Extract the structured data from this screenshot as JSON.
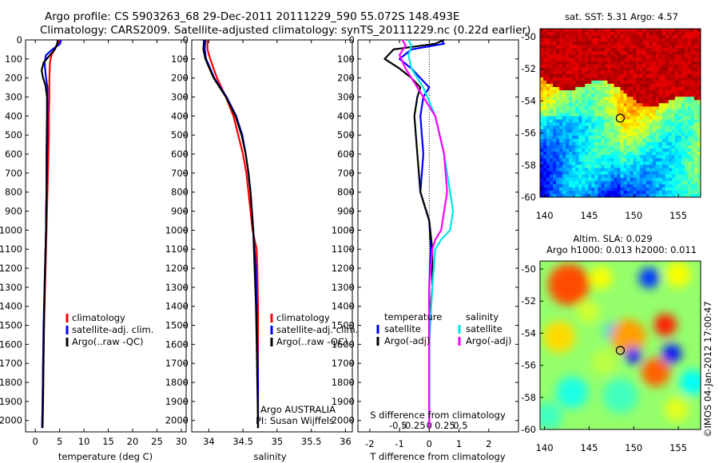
{
  "header": {
    "line1": "Argo profile: CS 5903263_68 29-Dec-2011 20111229_590 55.072S 148.493E",
    "line2": "Climatology: CARS2009. Satellite-adjusted climatology: synTS_20111229.nc (0.22d earlier)"
  },
  "colors": {
    "climatology": "#ff0000",
    "satellite": "#0000ff",
    "argo": "#000000",
    "sal_sat": "#00e5e5",
    "sal_argo": "#ff00ff"
  },
  "chart_data": [
    {
      "type": "line",
      "panel": "temperature",
      "xlabel": "temperature (deg C)",
      "ylabel": "",
      "xlim": [
        -2,
        31
      ],
      "ylim": [
        2060,
        0
      ],
      "xticks": [
        0,
        5,
        10,
        15,
        20,
        25,
        30
      ],
      "yticks": [
        0,
        100,
        200,
        300,
        400,
        500,
        600,
        700,
        800,
        900,
        1000,
        1100,
        1200,
        1300,
        1400,
        1500,
        1600,
        1700,
        1800,
        1900,
        2000
      ],
      "legend": [
        "climatology",
        "satellite-adj. clim.",
        "Argo(..raw -QC)"
      ],
      "series": [
        {
          "name": "climatology",
          "color": "#ff0000",
          "x": [
            4.9,
            4.7,
            4.0,
            3.3,
            3.0,
            2.9,
            2.9,
            2.8,
            2.8,
            2.7,
            2.6,
            2.5,
            2.4,
            2.3,
            2.2,
            2.1,
            2.0,
            1.9,
            1.8,
            1.7,
            1.6,
            1.5,
            1.4
          ],
          "y": [
            0,
            20,
            50,
            80,
            120,
            200,
            300,
            400,
            500,
            600,
            700,
            800,
            900,
            1000,
            1100,
            1200,
            1300,
            1400,
            1500,
            1600,
            1700,
            1900,
            2040
          ]
        },
        {
          "name": "satellite-adj. clim.",
          "color": "#0000ff",
          "x": [
            5.3,
            5.1,
            3.5,
            2.2,
            1.9,
            2.2,
            2.5,
            2.5,
            2.5,
            2.5,
            2.4,
            2.4,
            2.3,
            2.2,
            2.2,
            2.1,
            2.0,
            1.9,
            1.8,
            1.7,
            1.6,
            1.5,
            1.4
          ],
          "y": [
            0,
            20,
            50,
            80,
            120,
            200,
            250,
            300,
            400,
            500,
            600,
            700,
            800,
            900,
            1000,
            1100,
            1200,
            1300,
            1400,
            1500,
            1700,
            1900,
            2040
          ]
        },
        {
          "name": "Argo(..raw -QC)",
          "color": "#000000",
          "x": [
            4.6,
            4.5,
            4.0,
            3.0,
            1.7,
            1.3,
            1.6,
            2.1,
            2.4,
            2.4,
            2.3,
            2.3,
            2.2,
            2.1,
            2.0,
            1.9,
            1.8,
            1.7,
            1.6,
            1.5
          ],
          "y": [
            0,
            20,
            50,
            80,
            120,
            160,
            200,
            240,
            300,
            400,
            600,
            800,
            1000,
            1100,
            1200,
            1300,
            1500,
            1700,
            1900,
            2040
          ]
        }
      ]
    },
    {
      "type": "line",
      "panel": "salinity",
      "xlabel": "salinity",
      "ylabel": "",
      "xlim": [
        33.75,
        36.1
      ],
      "ylim": [
        2060,
        0
      ],
      "xticks": [
        34,
        34.5,
        35,
        35.5,
        36
      ],
      "xtick_labels": [
        "34",
        "34.5",
        "35",
        "35.5",
        "36"
      ],
      "legend": [
        "climatology",
        "satellite-adj. clim.",
        "Argo(..raw -QC)"
      ],
      "series": [
        {
          "name": "climatology",
          "color": "#ff0000",
          "x": [
            33.98,
            33.98,
            34.02,
            34.12,
            34.25,
            34.36,
            34.43,
            34.5,
            34.55,
            34.58,
            34.61,
            34.64,
            34.67,
            34.7,
            34.71,
            34.72,
            34.72,
            34.72,
            34.72
          ],
          "y": [
            0,
            50,
            100,
            200,
            300,
            400,
            500,
            600,
            700,
            800,
            900,
            1000,
            1050,
            1100,
            1200,
            1400,
            1600,
            1800,
            2040
          ]
        },
        {
          "name": "satellite-adj. clim.",
          "color": "#0000ff",
          "x": [
            33.95,
            33.94,
            33.96,
            34.08,
            34.26,
            34.4,
            34.49,
            34.54,
            34.58,
            34.61,
            34.63,
            34.65,
            34.67,
            34.69,
            34.7,
            34.71,
            34.72,
            34.72
          ],
          "y": [
            0,
            50,
            100,
            200,
            300,
            400,
            500,
            600,
            700,
            800,
            900,
            1000,
            1100,
            1200,
            1400,
            1600,
            1800,
            2040
          ]
        },
        {
          "name": "Argo(..raw -QC)",
          "color": "#000000",
          "x": [
            33.93,
            33.92,
            33.95,
            34.07,
            34.25,
            34.39,
            34.48,
            34.54,
            34.58,
            34.61,
            34.63,
            34.65,
            34.67,
            34.69,
            34.7,
            34.71,
            34.72
          ],
          "y": [
            0,
            50,
            100,
            200,
            300,
            400,
            500,
            600,
            700,
            800,
            900,
            1000,
            1200,
            1400,
            1600,
            1800,
            2040
          ]
        }
      ],
      "annotation_line1": "Argo AUSTRALIA",
      "annotation_line2": "PI: Susan Wijffels"
    },
    {
      "type": "line",
      "panel": "differences",
      "xlabel": "T difference from climatology",
      "xlabel_top": "S difference from climatology",
      "xlim": [
        -2.4,
        3
      ],
      "ylim": [
        2060,
        0
      ],
      "xticks_T": [
        -2,
        -1,
        0,
        1,
        2
      ],
      "xticks_S": [
        "-0.5",
        "-0.25",
        "0",
        "0.25",
        "0.5"
      ],
      "legend_title_T": "temperature",
      "legend_title_S": "salinity",
      "legend_T": [
        "satellite",
        "Argo(-adj)"
      ],
      "legend_S": [
        "satellite",
        "Argo(-adj)"
      ],
      "series": [
        {
          "name": "T satellite",
          "color": "#0000ff",
          "x": [
            0.4,
            0.5,
            -0.6,
            -1.0,
            -0.6,
            -0.3,
            0.0,
            -0.2,
            -0.3,
            -0.2,
            -0.3,
            0.0,
            0.05,
            0.0,
            0.0,
            0.0,
            0.0
          ],
          "y": [
            0,
            20,
            50,
            100,
            150,
            200,
            250,
            300,
            400,
            600,
            800,
            950,
            1100,
            1300,
            1500,
            1800,
            2040
          ]
        },
        {
          "name": "T Argo(-adj)",
          "color": "#000000",
          "x": [
            0.5,
            0.2,
            -1.2,
            -1.5,
            -1.0,
            -0.6,
            -0.3,
            -0.4,
            -0.5,
            -0.4,
            -0.3,
            0.0,
            0.1,
            0.1,
            0.0,
            0.0,
            0.0
          ],
          "y": [
            0,
            20,
            50,
            100,
            150,
            200,
            250,
            300,
            400,
            600,
            800,
            950,
            1100,
            1300,
            1500,
            1800,
            2040
          ]
        },
        {
          "name": "S satellite",
          "color": "#00e5e5",
          "x": [
            -0.7,
            -0.6,
            -0.7,
            -0.6,
            -0.2,
            0.2,
            0.5,
            0.7,
            0.8,
            0.7,
            0.4,
            0.2,
            0.1,
            0.0,
            0.0
          ],
          "y": [
            0,
            30,
            80,
            150,
            250,
            400,
            600,
            800,
            900,
            1000,
            1050,
            1100,
            1300,
            1600,
            2040
          ]
        },
        {
          "name": "S Argo(-adj)",
          "color": "#ff00ff",
          "x": [
            -0.9,
            -0.8,
            -1.0,
            -0.8,
            -0.4,
            0.2,
            0.5,
            0.6,
            0.5,
            0.4,
            0.2,
            0.1,
            0.0,
            0.0
          ],
          "y": [
            0,
            30,
            80,
            150,
            250,
            400,
            600,
            800,
            900,
            1000,
            1050,
            1100,
            1300,
            2040
          ]
        }
      ]
    },
    {
      "type": "heatmap",
      "panel": "sst-map",
      "title": "sat. SST: 5.31  Argo: 4.57",
      "xlim": [
        139.5,
        157.5
      ],
      "ylim": [
        -60,
        -49.5
      ],
      "xticks": [
        140,
        145,
        150,
        155
      ],
      "yticks": [
        -50,
        -52,
        -54,
        -56,
        -58,
        -60
      ],
      "marker": {
        "lon": 148.493,
        "lat": -55.072
      }
    },
    {
      "type": "heatmap",
      "panel": "sla-map",
      "title_line1": "Altim. SLA: 0.029",
      "title_line2": "Argo h1000: 0.013 h2000: 0.011",
      "xlim": [
        139.5,
        157.5
      ],
      "ylim": [
        -60,
        -49.5
      ],
      "xticks": [
        140,
        145,
        150,
        155
      ],
      "yticks": [
        -50,
        -52,
        -54,
        -56,
        -58,
        -60
      ],
      "marker": {
        "lon": 148.493,
        "lat": -55.072
      }
    }
  ],
  "footer": {
    "imos_stamp": "©IMOS 04-Jan-2012 17:00:47"
  }
}
